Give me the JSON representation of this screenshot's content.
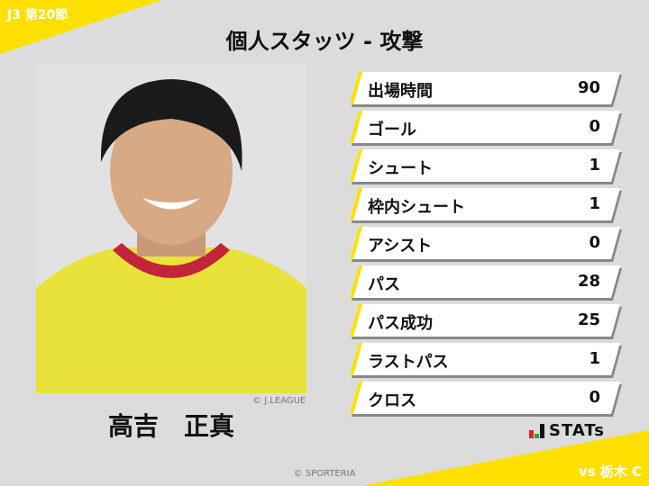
{
  "header": {
    "round": "J3 第20節",
    "title": "個人スタッツ - 攻撃"
  },
  "player": {
    "name": "高吉　正真",
    "photo_credit": "© J.LEAGUE"
  },
  "stats": [
    {
      "label": "出場時間",
      "value": "90"
    },
    {
      "label": "ゴール",
      "value": "0"
    },
    {
      "label": "シュート",
      "value": "1"
    },
    {
      "label": "枠内シュート",
      "value": "1"
    },
    {
      "label": "アシスト",
      "value": "0"
    },
    {
      "label": "パス",
      "value": "28"
    },
    {
      "label": "パス成功",
      "value": "25"
    },
    {
      "label": "ラストパス",
      "value": "1"
    },
    {
      "label": "クロス",
      "value": "0"
    }
  ],
  "brand": {
    "logo_text": "STATs",
    "copyright": "© SPORTERIA"
  },
  "opponent": "vs 栃木 C",
  "colors": {
    "accent": "#ffe000",
    "background": "#dcdcdc"
  }
}
